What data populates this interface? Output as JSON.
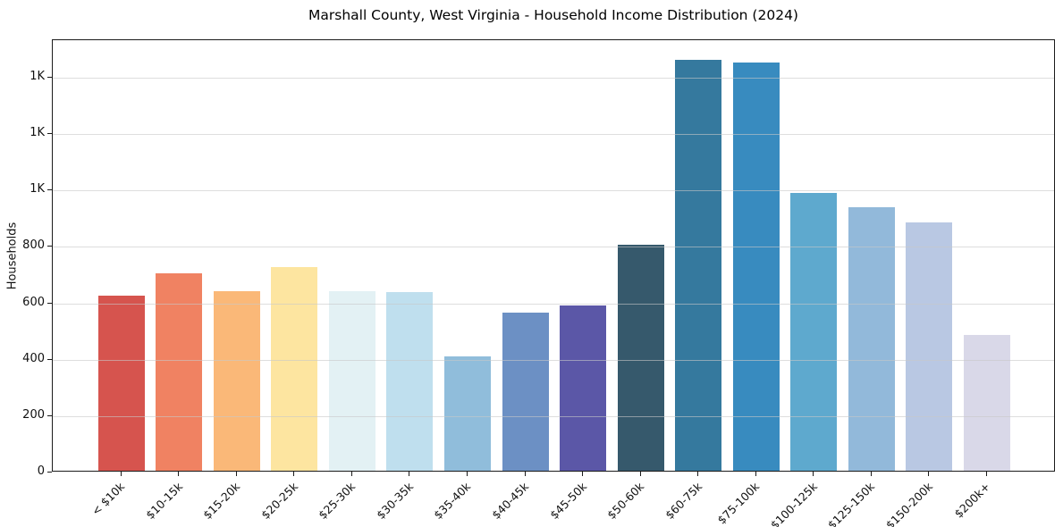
{
  "chart_data": {
    "type": "bar",
    "title": "Marshall County, West Virginia - Household Income Distribution (2024)",
    "xlabel": "",
    "ylabel": "Households",
    "categories": [
      "< $10k",
      "$10-15k",
      "$15-20k",
      "$20-25k",
      "$25-30k",
      "$30-35k",
      "$35-40k",
      "$40-45k",
      "$45-50k",
      "$50-60k",
      "$60-75k",
      "$75-100k",
      "$100-125k",
      "$125-150k",
      "$150-200k",
      "$200k+"
    ],
    "values": [
      622,
      699,
      636,
      722,
      638,
      634,
      404,
      562,
      586,
      800,
      1458,
      1448,
      985,
      934,
      880,
      482
    ],
    "bar_colors": [
      "#d6544e",
      "#f08262",
      "#fab878",
      "#fde5a0",
      "#e3f1f4",
      "#bfdfee",
      "#90bddb",
      "#6c90c4",
      "#5b57a7",
      "#36596c",
      "#35799e",
      "#388bbf",
      "#5ea9ce",
      "#92b9da",
      "#b9c8e3",
      "#d9d8e8"
    ],
    "ylim": [
      0,
      1533
    ],
    "yticks": [
      {
        "value": 0,
        "label": "0"
      },
      {
        "value": 200,
        "label": "200"
      },
      {
        "value": 400,
        "label": "400"
      },
      {
        "value": 600,
        "label": "600"
      },
      {
        "value": 800,
        "label": "800"
      },
      {
        "value": 1000,
        "label": "1K"
      },
      {
        "value": 1200,
        "label": "1K"
      },
      {
        "value": 1400,
        "label": "1K"
      }
    ],
    "grid": "horizontal",
    "legend_position": "none",
    "background_color": "#ffffff",
    "spine_color": "#1a1a1a",
    "grid_color": "#e0e0e0"
  }
}
